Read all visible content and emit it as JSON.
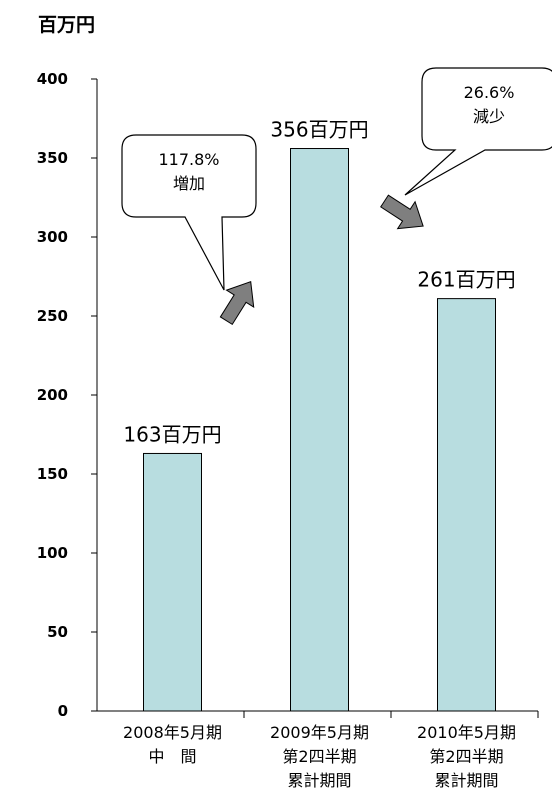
{
  "chart_data": {
    "type": "bar",
    "unit_label": "百万円",
    "ylim": [
      0,
      400
    ],
    "yticks": [
      0,
      50,
      100,
      150,
      200,
      250,
      300,
      350,
      400
    ],
    "categories": [
      [
        "2008年5月期",
        "中　間"
      ],
      [
        "2009年5月期",
        "第2四半期",
        "累計期間"
      ],
      [
        "2010年5月期",
        "第2四半期",
        "累計期間"
      ]
    ],
    "values": [
      163,
      356,
      261
    ],
    "data_labels": [
      "163百万円",
      "356百万円",
      "261百万円"
    ],
    "bar_color": "#b8dde0",
    "grid": false,
    "legend": "none",
    "annotations": [
      {
        "lines": [
          "117.8%",
          "増加"
        ]
      },
      {
        "lines": [
          "26.6%",
          "減少"
        ]
      }
    ]
  }
}
